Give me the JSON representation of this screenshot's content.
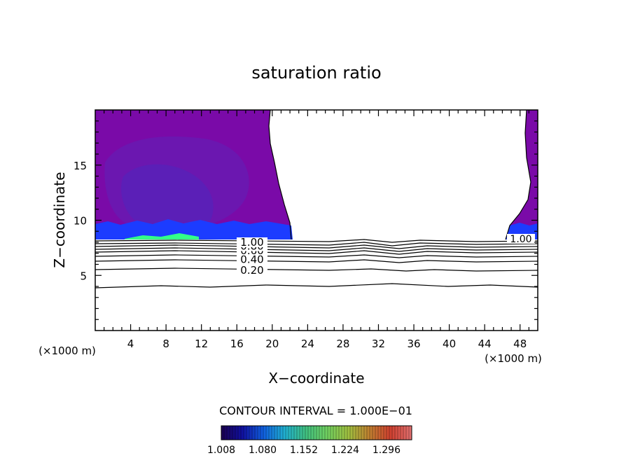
{
  "chart_data": {
    "type": "heatmap",
    "title": "saturation ratio",
    "xlabel": "X−coordinate",
    "ylabel": "Z−coordinate",
    "x_unit_left": "(×1000 m)",
    "x_unit_right": "(×1000 m)",
    "xlim": [
      0,
      50
    ],
    "ylim": [
      0,
      20
    ],
    "x_ticks": [
      4,
      8,
      12,
      16,
      20,
      24,
      28,
      32,
      36,
      40,
      44,
      48
    ],
    "y_ticks": [
      5,
      10,
      15
    ],
    "contour_levels": [
      {
        "label": "0.20",
        "z": 5.45
      },
      {
        "label": "0.40",
        "z": 6.45
      },
      {
        "label": "0.60",
        "z": 7.25
      },
      {
        "label": "0.80",
        "z": 7.65
      },
      {
        "label": "1.00",
        "z": 8.0
      }
    ],
    "right_contour_label": "1.00",
    "lowest_contour_z": 3.9,
    "contour_interval_text": "CONTOUR INTERVAL = 1.000E−01",
    "colorbar": {
      "range": [
        1.008,
        1.34
      ],
      "ticks": [
        "1.008",
        "1.080",
        "1.152",
        "1.224",
        "1.296"
      ],
      "colors": [
        "#1a0050",
        "#1010a0",
        "#1060e0",
        "#20b0d0",
        "#40c080",
        "#70d060",
        "#a0c040",
        "#c08030",
        "#d04030",
        "#e07070"
      ]
    },
    "colors": {
      "purple": "#7a0aa8",
      "inner_purple": "#6a18b0",
      "core_purple": "#5a20b8",
      "blue": "#1c3cff",
      "green": "#33ff88"
    }
  }
}
